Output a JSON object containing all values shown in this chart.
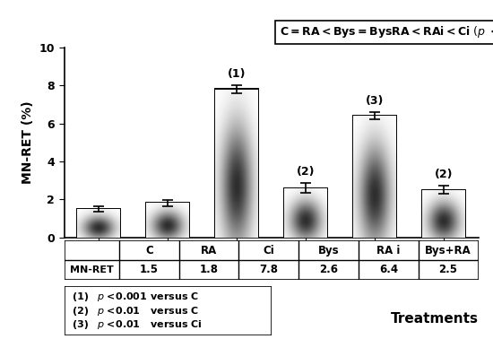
{
  "categories": [
    "C",
    "RA",
    "Ci",
    "Bys",
    "RA i",
    "Bys+RA"
  ],
  "values": [
    1.5,
    1.8,
    7.8,
    2.6,
    6.4,
    2.5
  ],
  "errors": [
    0.15,
    0.18,
    0.2,
    0.25,
    0.18,
    0.22
  ],
  "annotations": [
    "",
    "",
    "(1)",
    "(2)",
    "(3)",
    "(2)"
  ],
  "ylabel": "MN-RET (%)",
  "xlabel": "Treatments",
  "ylim": [
    0,
    10
  ],
  "yticks": [
    0,
    2,
    4,
    6,
    8,
    10
  ],
  "table_label": "MN-RET",
  "table_values": [
    "1.5",
    "1.8",
    "7.8",
    "2.6",
    "6.4",
    "2.5"
  ],
  "legend_lines": [
    [
      "(1)",
      "p <0.001 versus C"
    ],
    [
      "(2)",
      "p <0.01   versus C"
    ],
    [
      "(3)",
      "p <0.01   versus Ci"
    ]
  ],
  "bar_edge_color": "#000000",
  "background_color": "#ffffff"
}
